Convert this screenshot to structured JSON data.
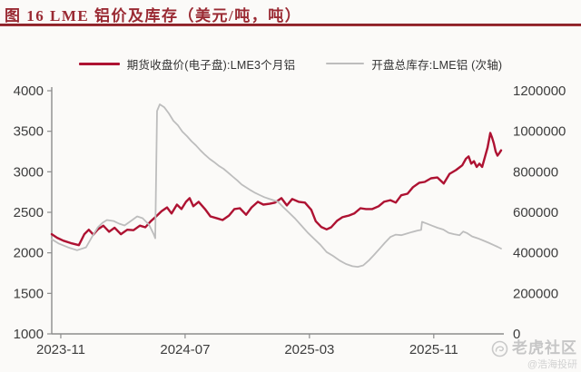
{
  "title": {
    "text": "图 16 LME 铝价及库存（美元/吨，吨）"
  },
  "watermark": {
    "brand": "老虎社区",
    "handle": "@浩海投研",
    "icon": "tiger-swirl-badge",
    "color": "#c6c6c6"
  },
  "colors": {
    "title_red": "#9a2a33",
    "rule_red": "#8e1f25",
    "axis": "#8c8c8c",
    "tick_text": "#3d3d3d"
  },
  "chart_data": {
    "type": "line",
    "title": "图 16 LME 铝价及库存（美元/吨，吨）",
    "grid": false,
    "legend_position": "top",
    "axis_color": "#8c8c8c",
    "x_axis": {
      "tick_labels": [
        "2023-11",
        "2024-07",
        "2025-03",
        "2025-11"
      ],
      "tick_positions": [
        0.02,
        0.295,
        0.57,
        0.845
      ]
    },
    "y_axis_left": {
      "min": 1000,
      "max": 4000,
      "ticks": [
        4000,
        3500,
        3000,
        2500,
        2000,
        1500,
        1000
      ]
    },
    "y_axis_right": {
      "min": 0,
      "max": 1200000,
      "ticks": [
        1200000,
        1000000,
        800000,
        600000,
        400000,
        200000,
        0
      ]
    },
    "series": [
      {
        "name": "期货收盘价(电子盘):LME3个月铝",
        "data_name": "price-line",
        "axis": "left",
        "color": "#ae1232",
        "width": 2.4,
        "points": [
          [
            0.0,
            2230
          ],
          [
            0.012,
            2185
          ],
          [
            0.026,
            2150
          ],
          [
            0.042,
            2120
          ],
          [
            0.06,
            2095
          ],
          [
            0.072,
            2230
          ],
          [
            0.082,
            2285
          ],
          [
            0.092,
            2225
          ],
          [
            0.102,
            2290
          ],
          [
            0.114,
            2335
          ],
          [
            0.127,
            2260
          ],
          [
            0.139,
            2310
          ],
          [
            0.153,
            2230
          ],
          [
            0.167,
            2285
          ],
          [
            0.181,
            2280
          ],
          [
            0.195,
            2335
          ],
          [
            0.207,
            2315
          ],
          [
            0.219,
            2390
          ],
          [
            0.231,
            2450
          ],
          [
            0.243,
            2515
          ],
          [
            0.255,
            2560
          ],
          [
            0.265,
            2485
          ],
          [
            0.277,
            2595
          ],
          [
            0.287,
            2540
          ],
          [
            0.297,
            2630
          ],
          [
            0.305,
            2675
          ],
          [
            0.313,
            2575
          ],
          [
            0.325,
            2630
          ],
          [
            0.339,
            2540
          ],
          [
            0.351,
            2450
          ],
          [
            0.366,
            2425
          ],
          [
            0.378,
            2405
          ],
          [
            0.392,
            2460
          ],
          [
            0.404,
            2540
          ],
          [
            0.416,
            2550
          ],
          [
            0.43,
            2470
          ],
          [
            0.442,
            2560
          ],
          [
            0.456,
            2630
          ],
          [
            0.468,
            2595
          ],
          [
            0.482,
            2605
          ],
          [
            0.494,
            2620
          ],
          [
            0.508,
            2675
          ],
          [
            0.52,
            2585
          ],
          [
            0.532,
            2665
          ],
          [
            0.546,
            2630
          ],
          [
            0.56,
            2620
          ],
          [
            0.574,
            2530
          ],
          [
            0.584,
            2390
          ],
          [
            0.596,
            2320
          ],
          [
            0.608,
            2290
          ],
          [
            0.618,
            2315
          ],
          [
            0.631,
            2395
          ],
          [
            0.643,
            2440
          ],
          [
            0.657,
            2460
          ],
          [
            0.669,
            2485
          ],
          [
            0.683,
            2550
          ],
          [
            0.695,
            2540
          ],
          [
            0.709,
            2540
          ],
          [
            0.723,
            2575
          ],
          [
            0.735,
            2630
          ],
          [
            0.749,
            2650
          ],
          [
            0.761,
            2620
          ],
          [
            0.773,
            2710
          ],
          [
            0.787,
            2730
          ],
          [
            0.799,
            2810
          ],
          [
            0.813,
            2865
          ],
          [
            0.825,
            2875
          ],
          [
            0.839,
            2920
          ],
          [
            0.853,
            2930
          ],
          [
            0.867,
            2855
          ],
          [
            0.88,
            2975
          ],
          [
            0.894,
            3020
          ],
          [
            0.908,
            3080
          ],
          [
            0.916,
            3160
          ],
          [
            0.922,
            3190
          ],
          [
            0.928,
            3100
          ],
          [
            0.934,
            3130
          ],
          [
            0.94,
            3060
          ],
          [
            0.946,
            3100
          ],
          [
            0.952,
            3060
          ],
          [
            0.958,
            3180
          ],
          [
            0.964,
            3300
          ],
          [
            0.97,
            3480
          ],
          [
            0.974,
            3420
          ],
          [
            0.978,
            3350
          ],
          [
            0.982,
            3250
          ],
          [
            0.986,
            3200
          ],
          [
            0.99,
            3230
          ],
          [
            0.994,
            3265
          ]
        ]
      },
      {
        "name": "开盘总库存:LME铝 (次轴)",
        "data_name": "inventory-line",
        "axis": "right",
        "color": "#bdbdbd",
        "width": 1.8,
        "points": [
          [
            0.0,
            467000
          ],
          [
            0.016,
            445000
          ],
          [
            0.036,
            427000
          ],
          [
            0.056,
            413000
          ],
          [
            0.076,
            427000
          ],
          [
            0.092,
            490000
          ],
          [
            0.102,
            526000
          ],
          [
            0.112,
            548000
          ],
          [
            0.122,
            562000
          ],
          [
            0.137,
            557000
          ],
          [
            0.149,
            544000
          ],
          [
            0.161,
            535000
          ],
          [
            0.175,
            557000
          ],
          [
            0.189,
            580000
          ],
          [
            0.201,
            571000
          ],
          [
            0.215,
            539000
          ],
          [
            0.225,
            494000
          ],
          [
            0.229,
            472000
          ],
          [
            0.233,
            1100000
          ],
          [
            0.239,
            1133000
          ],
          [
            0.249,
            1118000
          ],
          [
            0.259,
            1088000
          ],
          [
            0.269,
            1052000
          ],
          [
            0.279,
            1030000
          ],
          [
            0.289,
            998000
          ],
          [
            0.299,
            976000
          ],
          [
            0.309,
            951000
          ],
          [
            0.319,
            930000
          ],
          [
            0.329,
            906000
          ],
          [
            0.339,
            884000
          ],
          [
            0.349,
            864000
          ],
          [
            0.359,
            848000
          ],
          [
            0.369,
            830000
          ],
          [
            0.38,
            815000
          ],
          [
            0.39,
            796000
          ],
          [
            0.4,
            777000
          ],
          [
            0.41,
            758000
          ],
          [
            0.42,
            737000
          ],
          [
            0.43,
            723000
          ],
          [
            0.44,
            709000
          ],
          [
            0.45,
            696000
          ],
          [
            0.46,
            685000
          ],
          [
            0.47,
            675000
          ],
          [
            0.48,
            667000
          ],
          [
            0.49,
            660000
          ],
          [
            0.5,
            653000
          ],
          [
            0.51,
            630000
          ],
          [
            0.524,
            600000
          ],
          [
            0.538,
            570000
          ],
          [
            0.552,
            535000
          ],
          [
            0.566,
            500000
          ],
          [
            0.58,
            470000
          ],
          [
            0.594,
            440000
          ],
          [
            0.608,
            404000
          ],
          [
            0.622,
            385000
          ],
          [
            0.637,
            362000
          ],
          [
            0.651,
            345000
          ],
          [
            0.665,
            334000
          ],
          [
            0.677,
            331000
          ],
          [
            0.689,
            338000
          ],
          [
            0.701,
            362000
          ],
          [
            0.713,
            390000
          ],
          [
            0.725,
            420000
          ],
          [
            0.737,
            450000
          ],
          [
            0.749,
            478000
          ],
          [
            0.761,
            490000
          ],
          [
            0.773,
            487000
          ],
          [
            0.785,
            495000
          ],
          [
            0.797,
            503000
          ],
          [
            0.809,
            510000
          ],
          [
            0.817,
            513000
          ],
          [
            0.819,
            553000
          ],
          [
            0.829,
            545000
          ],
          [
            0.841,
            534000
          ],
          [
            0.853,
            524000
          ],
          [
            0.866,
            515000
          ],
          [
            0.878,
            499000
          ],
          [
            0.89,
            492000
          ],
          [
            0.902,
            487000
          ],
          [
            0.91,
            505000
          ],
          [
            0.918,
            498000
          ],
          [
            0.93,
            481000
          ],
          [
            0.942,
            472000
          ],
          [
            0.954,
            461000
          ],
          [
            0.966,
            450000
          ],
          [
            0.978,
            438000
          ],
          [
            0.986,
            430000
          ],
          [
            0.994,
            421000
          ]
        ]
      }
    ]
  }
}
